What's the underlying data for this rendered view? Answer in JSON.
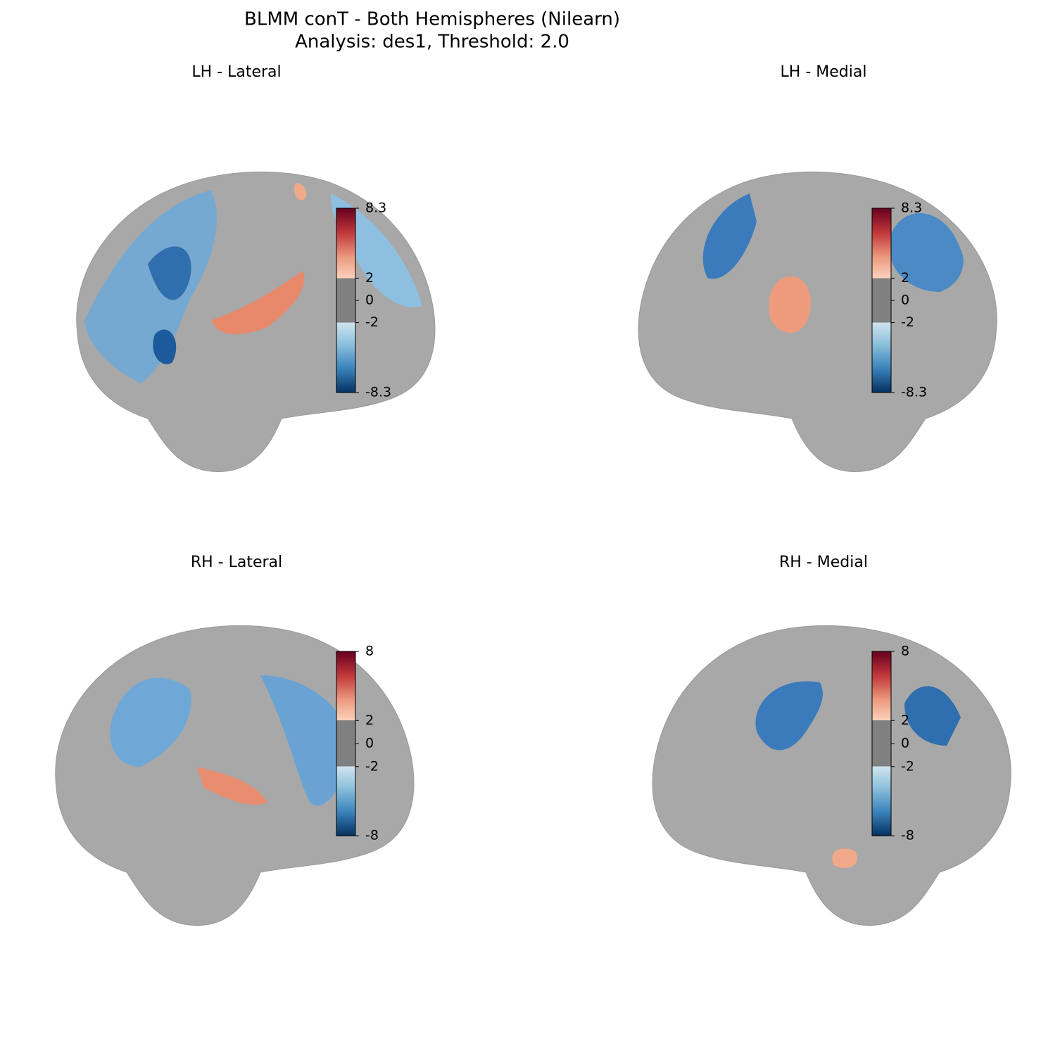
{
  "figure": {
    "title": "BLMM conT - Both Hemispheres (Nilearn)",
    "subtitle": "Analysis: des1, Threshold: 2.0",
    "threshold": 2,
    "panels": [
      {
        "title": "LH - Lateral",
        "colorbar": {
          "lim": [
            -8.3,
            8.3
          ],
          "ticks": [
            8.3,
            2,
            0,
            -2,
            -8.3
          ]
        }
      },
      {
        "title": "LH - Medial",
        "colorbar": {
          "lim": [
            -8.3,
            8.3
          ],
          "ticks": [
            8.3,
            2,
            0,
            -2,
            -8.3
          ]
        }
      },
      {
        "title": "RH - Lateral",
        "colorbar": {
          "lim": [
            -8,
            8
          ],
          "ticks": [
            8,
            2,
            0,
            -2,
            -8
          ]
        }
      },
      {
        "title": "RH - Medial",
        "colorbar": {
          "lim": [
            -8,
            8
          ],
          "ticks": [
            8,
            2,
            0,
            -2,
            -8
          ]
        }
      }
    ]
  }
}
